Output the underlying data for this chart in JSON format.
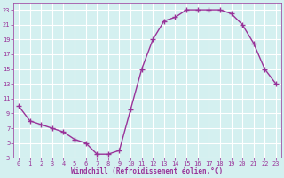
{
  "x": [
    0,
    1,
    2,
    3,
    4,
    5,
    6,
    7,
    8,
    9,
    10,
    11,
    12,
    13,
    14,
    15,
    16,
    17,
    18,
    19,
    20,
    21,
    22,
    23
  ],
  "y": [
    10,
    8,
    7.5,
    7,
    6.5,
    5.5,
    5,
    3.5,
    3.5,
    4,
    9.5,
    15,
    19,
    21.5,
    22,
    23,
    23,
    23,
    23,
    22.5,
    21,
    18.5,
    15,
    13
  ],
  "line_color": "#993399",
  "marker": "+",
  "marker_size": 5,
  "xlabel": "Windchill (Refroidissement éolien,°C)",
  "xlabel_color": "#993399",
  "bg_color": "#d4f0f0",
  "grid_color": "#b8dada",
  "tick_color": "#993399",
  "spine_color": "#993399",
  "ylim": [
    3,
    24
  ],
  "xlim": [
    -0.5,
    23.5
  ],
  "yticks": [
    3,
    5,
    7,
    9,
    11,
    13,
    15,
    17,
    19,
    21,
    23
  ],
  "xticks": [
    0,
    1,
    2,
    3,
    4,
    5,
    6,
    7,
    8,
    9,
    10,
    11,
    12,
    13,
    14,
    15,
    16,
    17,
    18,
    19,
    20,
    21,
    22,
    23
  ],
  "xlabel_fontsize": 5.5,
  "tick_fontsize": 5.0,
  "linewidth": 1.0
}
